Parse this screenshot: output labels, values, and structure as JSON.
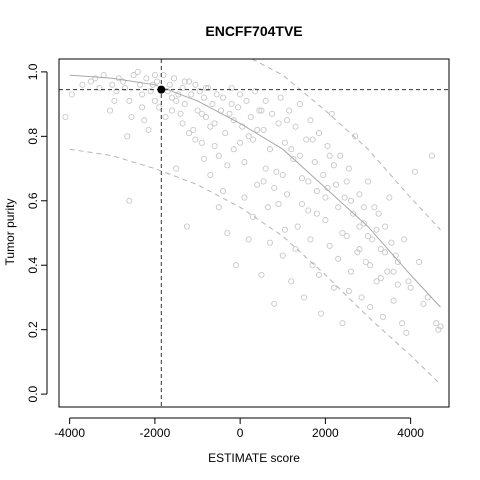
{
  "chart_data": {
    "type": "scatter",
    "title": "ENCFF704TVE",
    "xlabel": "ESTIMATE score",
    "ylabel": "Tumor purity",
    "xlim": [
      -4250,
      4900
    ],
    "ylim": [
      -0.04,
      1.04
    ],
    "x_ticks": [
      -4000,
      -2000,
      0,
      2000,
      4000
    ],
    "x_tick_labels": [
      "-4000",
      "-2000",
      "0",
      "2000",
      "4000"
    ],
    "y_ticks": [
      0.0,
      0.2,
      0.4,
      0.6,
      0.8,
      1.0
    ],
    "y_tick_labels": [
      "0.0",
      "0.2",
      "0.4",
      "0.6",
      "0.8",
      "1.0"
    ],
    "grid": false,
    "legend": "none",
    "colors": {
      "points": "#c8c8c8",
      "fit_line": "#a8a8a8",
      "bound_lines": "#b4b4b4",
      "highlight": "#000000",
      "reference_lines": "#333333"
    },
    "fit_curve": {
      "x": [
        -4000,
        -3000,
        -2000,
        -1000,
        0,
        1000,
        2000,
        3000,
        4000,
        4700
      ],
      "y": [
        0.99,
        0.98,
        0.96,
        0.91,
        0.84,
        0.76,
        0.64,
        0.52,
        0.37,
        0.27
      ]
    },
    "upper_bound": {
      "x": [
        280,
        1000,
        2000,
        3000,
        4000,
        4700
      ],
      "y": [
        1.04,
        0.99,
        0.88,
        0.76,
        0.61,
        0.51
      ]
    },
    "lower_bound": {
      "x": [
        -4000,
        -3000,
        -2000,
        -1000,
        0,
        1000,
        2000,
        3000,
        4000,
        4700
      ],
      "y": [
        0.76,
        0.74,
        0.7,
        0.65,
        0.58,
        0.49,
        0.37,
        0.24,
        0.12,
        0.03
      ]
    },
    "highlight_point": {
      "x": -1850,
      "y": 0.945
    },
    "reference_lines": {
      "x": -1850,
      "y": 0.945
    },
    "points": [
      [
        -4100,
        0.86
      ],
      [
        -3950,
        0.93
      ],
      [
        -3700,
        0.96
      ],
      [
        -3500,
        0.97
      ],
      [
        -3300,
        0.95
      ],
      [
        -3200,
        0.99
      ],
      [
        -3000,
        0.96
      ],
      [
        -2950,
        0.91
      ],
      [
        -2900,
        0.94
      ],
      [
        -2850,
        0.98
      ],
      [
        -2750,
        0.97
      ],
      [
        -2700,
        0.95
      ],
      [
        -2650,
        0.8
      ],
      [
        -2600,
        0.6
      ],
      [
        -2550,
        0.86
      ],
      [
        -2500,
        0.99
      ],
      [
        -2400,
        1.0
      ],
      [
        -2350,
        0.96
      ],
      [
        -2300,
        0.93
      ],
      [
        -2200,
        0.98
      ],
      [
        -2150,
        0.82
      ],
      [
        -2100,
        0.94
      ],
      [
        -2050,
        0.96
      ],
      [
        -2000,
        0.91
      ],
      [
        -1950,
        0.97
      ],
      [
        -1800,
        0.99
      ],
      [
        -1700,
        0.94
      ],
      [
        -1650,
        0.96
      ],
      [
        -1600,
        0.92
      ],
      [
        -1550,
        0.98
      ],
      [
        -1500,
        0.7
      ],
      [
        -1450,
        0.93
      ],
      [
        -1400,
        0.87
      ],
      [
        -1350,
        0.95
      ],
      [
        -1300,
        0.9
      ],
      [
        -1250,
        0.52
      ],
      [
        -1200,
        0.97
      ],
      [
        -1150,
        0.93
      ],
      [
        -1100,
        0.82
      ],
      [
        -1050,
        0.96
      ],
      [
        -1000,
        0.88
      ],
      [
        -950,
        0.94
      ],
      [
        -900,
        0.78
      ],
      [
        -850,
        0.92
      ],
      [
        -800,
        0.86
      ],
      [
        -750,
        0.95
      ],
      [
        -700,
        0.68
      ],
      [
        -650,
        0.9
      ],
      [
        -600,
        0.84
      ],
      [
        -550,
        0.93
      ],
      [
        -500,
        0.58
      ],
      [
        -450,
        0.88
      ],
      [
        -400,
        0.92
      ],
      [
        -350,
        0.81
      ],
      [
        -300,
        0.5
      ],
      [
        -250,
        0.87
      ],
      [
        -200,
        0.95
      ],
      [
        -150,
        0.76
      ],
      [
        -100,
        0.4
      ],
      [
        -50,
        0.89
      ],
      [
        0,
        0.93
      ],
      [
        50,
        0.83
      ],
      [
        100,
        0.72
      ],
      [
        150,
        0.91
      ],
      [
        200,
        0.48
      ],
      [
        250,
        0.86
      ],
      [
        300,
        0.79
      ],
      [
        350,
        0.94
      ],
      [
        400,
        0.65
      ],
      [
        450,
        0.88
      ],
      [
        500,
        0.37
      ],
      [
        550,
        0.82
      ],
      [
        600,
        0.91
      ],
      [
        650,
        0.58
      ],
      [
        700,
        0.76
      ],
      [
        750,
        0.87
      ],
      [
        800,
        0.28
      ],
      [
        850,
        0.69
      ],
      [
        900,
        0.84
      ],
      [
        950,
        0.92
      ],
      [
        1000,
        0.43
      ],
      [
        1050,
        0.78
      ],
      [
        1100,
        0.62
      ],
      [
        1150,
        0.88
      ],
      [
        1200,
        0.35
      ],
      [
        1250,
        0.73
      ],
      [
        1300,
        0.83
      ],
      [
        1350,
        0.52
      ],
      [
        1400,
        0.9
      ],
      [
        1450,
        0.67
      ],
      [
        1500,
        0.3
      ],
      [
        1550,
        0.79
      ],
      [
        1600,
        0.57
      ],
      [
        1650,
        0.85
      ],
      [
        1700,
        0.4
      ],
      [
        1750,
        0.72
      ],
      [
        1800,
        0.63
      ],
      [
        1850,
        0.81
      ],
      [
        1900,
        0.25
      ],
      [
        1950,
        0.68
      ],
      [
        2000,
        0.54
      ],
      [
        2050,
        0.77
      ],
      [
        2100,
        0.46
      ],
      [
        2150,
        0.87
      ],
      [
        2200,
        0.33
      ],
      [
        2250,
        0.65
      ],
      [
        2300,
        0.58
      ],
      [
        2350,
        0.74
      ],
      [
        2400,
        0.22
      ],
      [
        2450,
        0.61
      ],
      [
        2500,
        0.49
      ],
      [
        2550,
        0.7
      ],
      [
        2600,
        0.38
      ],
      [
        2650,
        0.56
      ],
      [
        2700,
        0.8
      ],
      [
        2750,
        0.44
      ],
      [
        2800,
        0.62
      ],
      [
        2850,
        0.3
      ],
      [
        2900,
        0.53
      ],
      [
        2950,
        0.41
      ],
      [
        3000,
        0.66
      ],
      [
        3050,
        0.27
      ],
      [
        3100,
        0.48
      ],
      [
        3150,
        0.58
      ],
      [
        3200,
        0.35
      ],
      [
        3300,
        0.45
      ],
      [
        3350,
        0.24
      ],
      [
        3400,
        0.52
      ],
      [
        3450,
        0.38
      ],
      [
        3500,
        0.61
      ],
      [
        3600,
        0.29
      ],
      [
        3650,
        0.43
      ],
      [
        3700,
        0.34
      ],
      [
        3800,
        0.22
      ],
      [
        3850,
        0.48
      ],
      [
        3900,
        0.19
      ],
      [
        3950,
        0.35
      ],
      [
        4100,
        0.69
      ],
      [
        4200,
        0.41
      ],
      [
        4400,
        0.3
      ],
      [
        4500,
        0.74
      ],
      [
        4600,
        0.22
      ],
      [
        4650,
        0.2
      ],
      [
        -3050,
        0.88
      ],
      [
        -2250,
        0.85
      ],
      [
        -1900,
        0.89
      ],
      [
        -1750,
        0.86
      ],
      [
        -1350,
        0.84
      ],
      [
        -1050,
        0.79
      ],
      [
        -850,
        0.73
      ],
      [
        -600,
        0.77
      ],
      [
        -400,
        0.63
      ],
      [
        -150,
        0.85
      ],
      [
        100,
        0.61
      ],
      [
        300,
        0.55
      ],
      [
        550,
        0.66
      ],
      [
        700,
        0.47
      ],
      [
        900,
        0.59
      ],
      [
        1050,
        0.51
      ],
      [
        1300,
        0.45
      ],
      [
        1450,
        0.59
      ],
      [
        1650,
        0.48
      ],
      [
        1850,
        0.37
      ],
      [
        2050,
        0.64
      ],
      [
        2300,
        0.42
      ],
      [
        2550,
        0.32
      ],
      [
        2800,
        0.52
      ],
      [
        3050,
        0.4
      ],
      [
        3250,
        0.56
      ],
      [
        3550,
        0.47
      ],
      [
        -1600,
        0.88
      ],
      [
        -1200,
        0.81
      ],
      [
        -700,
        0.83
      ],
      [
        -300,
        0.71
      ],
      [
        200,
        0.8
      ],
      [
        600,
        0.7
      ],
      [
        1000,
        0.68
      ],
      [
        1400,
        0.74
      ],
      [
        1800,
        0.56
      ],
      [
        2200,
        0.71
      ],
      [
        2600,
        0.6
      ],
      [
        3000,
        0.49
      ],
      [
        3400,
        0.44
      ],
      [
        -2600,
        0.91
      ],
      [
        -2300,
        0.89
      ],
      [
        -1500,
        0.91
      ],
      [
        -900,
        0.87
      ],
      [
        -500,
        0.74
      ],
      [
        0,
        0.78
      ],
      [
        400,
        0.82
      ],
      [
        800,
        0.64
      ],
      [
        1200,
        0.76
      ],
      [
        1600,
        0.66
      ],
      [
        2000,
        0.61
      ],
      [
        2400,
        0.5
      ],
      [
        2800,
        0.45
      ],
      [
        3200,
        0.51
      ],
      [
        3600,
        0.38
      ],
      [
        4000,
        0.33
      ],
      [
        -3400,
        0.98
      ],
      [
        -2000,
        0.99
      ],
      [
        -1300,
        0.97
      ],
      [
        -800,
        0.95
      ],
      [
        -200,
        0.9
      ],
      [
        500,
        0.88
      ],
      [
        1100,
        0.85
      ],
      [
        1700,
        0.79
      ],
      [
        2100,
        0.74
      ],
      [
        2500,
        0.66
      ],
      [
        2900,
        0.58
      ],
      [
        3300,
        0.36
      ],
      [
        3700,
        0.41
      ],
      [
        4300,
        0.28
      ],
      [
        4700,
        0.21
      ]
    ]
  }
}
